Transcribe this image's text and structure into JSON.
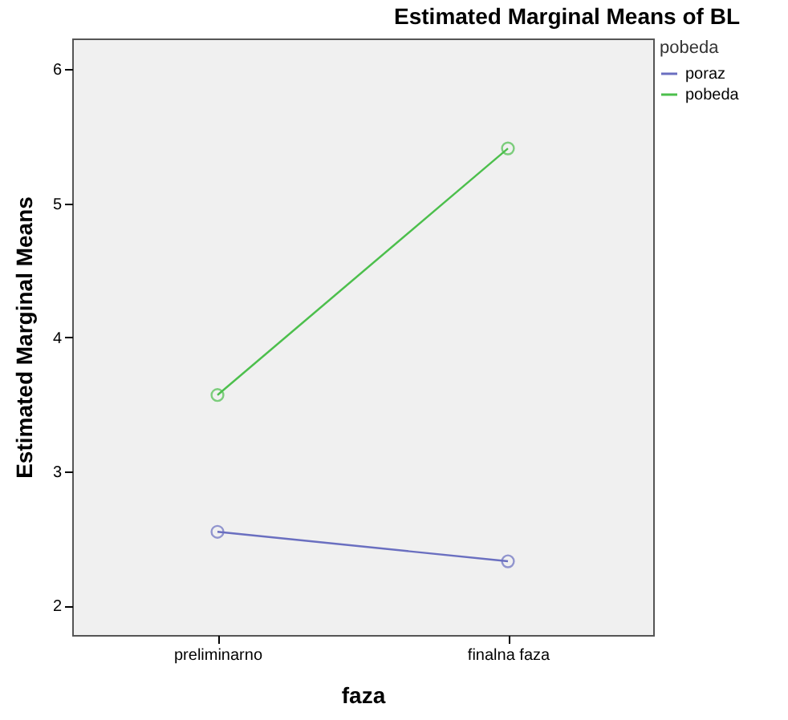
{
  "chart_data": {
    "type": "line",
    "title": "Estimated Marginal Means of BL",
    "xlabel": "faza",
    "ylabel": "Estimated Marginal Means",
    "legend_title": "pobeda",
    "categories": [
      "preliminarno",
      "finalna faza"
    ],
    "series": [
      {
        "name": "poraz",
        "color": "#6a6fc0",
        "values": [
          2.55,
          2.33
        ]
      },
      {
        "name": "pobeda",
        "color": "#4cbf4c",
        "values": [
          3.57,
          5.41
        ]
      }
    ],
    "ylim": [
      1.78,
      6.23
    ],
    "yticks": [
      2,
      3,
      4,
      5,
      6
    ],
    "grid": false,
    "legend": "top right",
    "marker": "circle",
    "line_style": "solid"
  }
}
